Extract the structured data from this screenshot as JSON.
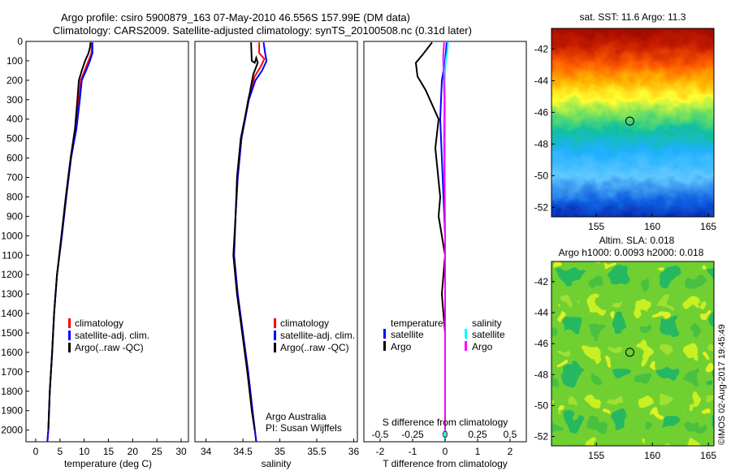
{
  "header": {
    "line1": "Argo profile: csiro 5900879_163 07-May-2010 46.556S 157.99E (DM data)",
    "line2": "Climatology: CARS2009. Satellite-adjusted climatology: synTS_20100508.nc (0.31d later)"
  },
  "colors": {
    "climatology": "#ff0000",
    "satellite": "#0000ff",
    "argo": "#000000",
    "salinity_satellite": "#00ffff",
    "salinity_argo": "#ff00ff"
  },
  "depth_axis": {
    "ticks": [
      0,
      100,
      200,
      300,
      400,
      500,
      600,
      700,
      800,
      900,
      1000,
      1100,
      1200,
      1300,
      1400,
      1500,
      1600,
      1700,
      1800,
      1900,
      2000
    ],
    "range": [
      0,
      2060
    ]
  },
  "annotations": {
    "argo_australia": "Argo Australia",
    "pi": "PI: Susan Wijffels",
    "imos": "©IMOS 02-Aug-2017 19:45:49"
  },
  "chart_data": [
    {
      "type": "line",
      "xlabel": "temperature (deg C)",
      "xticks": [
        0,
        5,
        10,
        15,
        20,
        25,
        30
      ],
      "xlim": [
        -2,
        31.5
      ],
      "legend": [
        "climatology",
        "satellite-adj. clim.",
        "Argo(..raw -QC)"
      ],
      "legend_placement": "lower-center",
      "series": [
        {
          "name": "climatology",
          "points": [
            [
              11.6,
              5
            ],
            [
              11.5,
              60
            ],
            [
              10.9,
              100
            ],
            [
              10.1,
              150
            ],
            [
              9.3,
              200
            ],
            [
              8.9,
              300
            ],
            [
              8.3,
              450
            ],
            [
              7.3,
              600
            ],
            [
              6.3,
              800
            ],
            [
              5.4,
              1000
            ],
            [
              4.4,
              1200
            ],
            [
              3.8,
              1400
            ],
            [
              3.4,
              1600
            ],
            [
              2.9,
              1800
            ],
            [
              2.6,
              2000
            ],
            [
              2.4,
              2060
            ]
          ]
        },
        {
          "name": "satellite-adj. clim.",
          "points": [
            [
              11.7,
              5
            ],
            [
              11.7,
              60
            ],
            [
              11.2,
              100
            ],
            [
              10.4,
              150
            ],
            [
              9.5,
              200
            ],
            [
              9.1,
              300
            ],
            [
              8.4,
              450
            ],
            [
              7.3,
              600
            ],
            [
              6.3,
              800
            ],
            [
              5.4,
              1000
            ],
            [
              4.4,
              1200
            ],
            [
              3.8,
              1400
            ],
            [
              3.4,
              1600
            ],
            [
              2.9,
              1800
            ],
            [
              2.6,
              2000
            ],
            [
              2.4,
              2060
            ]
          ]
        },
        {
          "name": "Argo(..raw -QC)",
          "points": [
            [
              11.3,
              5
            ],
            [
              11.2,
              30
            ],
            [
              10.9,
              60
            ],
            [
              10.2,
              100
            ],
            [
              9.5,
              150
            ],
            [
              8.9,
              200
            ],
            [
              8.6,
              300
            ],
            [
              8.1,
              450
            ],
            [
              7.2,
              600
            ],
            [
              6.2,
              800
            ],
            [
              5.3,
              1000
            ],
            [
              4.4,
              1200
            ],
            [
              3.8,
              1400
            ],
            [
              3.4,
              1600
            ],
            [
              2.9,
              1800
            ],
            [
              2.6,
              2000
            ]
          ]
        }
      ]
    },
    {
      "type": "line",
      "xlabel": "salinity",
      "xticks": [
        34,
        34.5,
        35,
        35.5,
        36
      ],
      "xticklabels": [
        "34",
        "34.5",
        "35",
        "35.5",
        "36"
      ],
      "xlim": [
        33.85,
        36.05
      ],
      "legend": [
        "climatology",
        "satellite-adj. clim.",
        "Argo(..raw -QC)"
      ],
      "legend_placement": "lower-center",
      "series": [
        {
          "name": "climatology",
          "points": [
            [
              34.72,
              5
            ],
            [
              34.72,
              60
            ],
            [
              34.79,
              90
            ],
            [
              34.74,
              130
            ],
            [
              34.66,
              180
            ],
            [
              34.57,
              300
            ],
            [
              34.48,
              500
            ],
            [
              34.43,
              700
            ],
            [
              34.4,
              900
            ],
            [
              34.38,
              1100
            ],
            [
              34.43,
              1300
            ],
            [
              34.5,
              1500
            ],
            [
              34.57,
              1700
            ],
            [
              34.63,
              1900
            ],
            [
              34.68,
              2060
            ]
          ]
        },
        {
          "name": "satellite-adj. clim.",
          "points": [
            [
              34.78,
              5
            ],
            [
              34.8,
              60
            ],
            [
              34.82,
              100
            ],
            [
              34.76,
              150
            ],
            [
              34.67,
              200
            ],
            [
              34.58,
              300
            ],
            [
              34.48,
              500
            ],
            [
              34.43,
              700
            ],
            [
              34.4,
              900
            ],
            [
              34.38,
              1100
            ],
            [
              34.43,
              1300
            ],
            [
              34.5,
              1500
            ],
            [
              34.57,
              1700
            ],
            [
              34.63,
              1900
            ],
            [
              34.68,
              2060
            ]
          ]
        },
        {
          "name": "Argo(..raw -QC)",
          "points": [
            [
              34.61,
              5
            ],
            [
              34.62,
              100
            ],
            [
              34.66,
              110
            ],
            [
              34.68,
              85
            ],
            [
              34.7,
              110
            ],
            [
              34.64,
              170
            ],
            [
              34.6,
              250
            ],
            [
              34.55,
              350
            ],
            [
              34.47,
              500
            ],
            [
              34.42,
              700
            ],
            [
              34.4,
              900
            ],
            [
              34.37,
              1100
            ],
            [
              34.42,
              1300
            ],
            [
              34.49,
              1500
            ],
            [
              34.56,
              1700
            ],
            [
              34.62,
              1900
            ],
            [
              34.66,
              2000
            ]
          ]
        }
      ]
    },
    {
      "type": "line",
      "xlabel": "T difference from climatology",
      "xlabel_top": "S difference from climatology",
      "xticks": [
        -2,
        -1,
        0,
        1,
        2
      ],
      "xticks_top": [
        -0.5,
        -0.25,
        0,
        0.25,
        0.5
      ],
      "xlim": [
        -2.5,
        2.5
      ],
      "legend": [
        "temperature",
        "satellite",
        "Argo",
        "salinity",
        "satellite",
        "Argo"
      ],
      "legend_placement": "lower-center",
      "series": [
        {
          "name": "temperature satellite",
          "points": [
            [
              0.05,
              5
            ],
            [
              0.0,
              100
            ],
            [
              -0.1,
              200
            ],
            [
              -0.15,
              400
            ],
            [
              -0.1,
              600
            ],
            [
              -0.05,
              800
            ],
            [
              0,
              1000
            ],
            [
              0,
              1400
            ],
            [
              0,
              2060
            ]
          ]
        },
        {
          "name": "temperature Argo",
          "points": [
            [
              -0.4,
              5
            ],
            [
              -0.7,
              70
            ],
            [
              -0.9,
              110
            ],
            [
              -0.85,
              180
            ],
            [
              -0.6,
              250
            ],
            [
              -0.2,
              400
            ],
            [
              -0.3,
              550
            ],
            [
              -0.15,
              800
            ],
            [
              -0.2,
              900
            ],
            [
              -0.1,
              1000
            ],
            [
              0,
              1100
            ],
            [
              -0.1,
              1300
            ],
            [
              0,
              1500
            ],
            [
              0,
              2000
            ]
          ]
        },
        {
          "name": "salinity satellite",
          "points": [
            [
              0.09,
              5
            ],
            [
              0.06,
              60
            ],
            [
              0.02,
              100
            ],
            [
              -0.01,
              200
            ],
            [
              0,
              400
            ],
            [
              -0.01,
              700
            ],
            [
              0,
              1000
            ],
            [
              0,
              2060
            ]
          ]
        },
        {
          "name": "salinity Argo",
          "points": [
            [
              -0.03,
              5
            ],
            [
              -0.06,
              80
            ],
            [
              -0.04,
              180
            ],
            [
              -0.02,
              300
            ],
            [
              -0.03,
              500
            ],
            [
              -0.02,
              700
            ],
            [
              0,
              1000
            ],
            [
              0,
              1500
            ],
            [
              0,
              2000
            ]
          ]
        }
      ]
    },
    {
      "type": "heatmap",
      "title": "sat. SST: 11.6 Argo: 11.3",
      "xticks": [
        155,
        160,
        165
      ],
      "yticks": [
        -42,
        -44,
        -46,
        -48,
        -50,
        -52
      ],
      "xlim": [
        151,
        165.5
      ],
      "ylim": [
        -52.6,
        -40.7
      ],
      "marker": {
        "lon": 157.99,
        "lat": -46.556
      }
    },
    {
      "type": "heatmap",
      "title": "Altim. SLA: 0.018",
      "subtitle": "Argo h1000: 0.0093 h2000: 0.018",
      "xticks": [
        155,
        160,
        165
      ],
      "yticks": [
        -42,
        -44,
        -46,
        -48,
        -50,
        -52
      ],
      "xlim": [
        151,
        165.5
      ],
      "ylim": [
        -52.6,
        -40.7
      ],
      "marker": {
        "lon": 157.99,
        "lat": -46.556
      }
    }
  ]
}
